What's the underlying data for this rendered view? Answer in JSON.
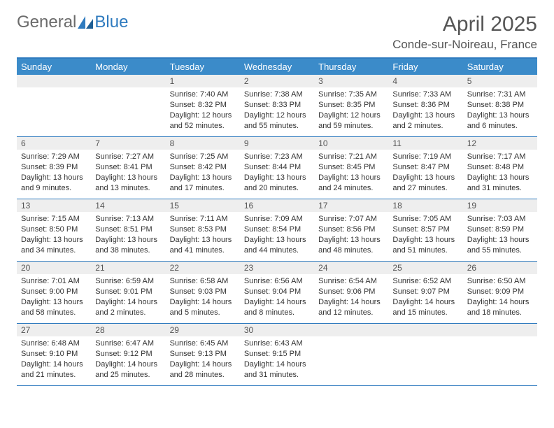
{
  "logo": {
    "part1": "General",
    "part2": "Blue"
  },
  "title": "April 2025",
  "location": "Conde-sur-Noireau, France",
  "colors": {
    "header_bg": "#3b8bc9",
    "border": "#2f7bbf",
    "daynum_bg": "#eeeeee",
    "text": "#333333",
    "title_text": "#555555",
    "logo_gray": "#6b6b6b",
    "logo_blue": "#2f7bbf",
    "background": "#ffffff"
  },
  "calendar": {
    "type": "table",
    "weekday_headers": [
      "Sunday",
      "Monday",
      "Tuesday",
      "Wednesday",
      "Thursday",
      "Friday",
      "Saturday"
    ],
    "header_fontsize": 13,
    "cell_fontsize": 11,
    "daynum_fontsize": 12,
    "rows": [
      [
        null,
        null,
        {
          "day": "1",
          "sunrise": "Sunrise: 7:40 AM",
          "sunset": "Sunset: 8:32 PM",
          "daylight": "Daylight: 12 hours and 52 minutes."
        },
        {
          "day": "2",
          "sunrise": "Sunrise: 7:38 AM",
          "sunset": "Sunset: 8:33 PM",
          "daylight": "Daylight: 12 hours and 55 minutes."
        },
        {
          "day": "3",
          "sunrise": "Sunrise: 7:35 AM",
          "sunset": "Sunset: 8:35 PM",
          "daylight": "Daylight: 12 hours and 59 minutes."
        },
        {
          "day": "4",
          "sunrise": "Sunrise: 7:33 AM",
          "sunset": "Sunset: 8:36 PM",
          "daylight": "Daylight: 13 hours and 2 minutes."
        },
        {
          "day": "5",
          "sunrise": "Sunrise: 7:31 AM",
          "sunset": "Sunset: 8:38 PM",
          "daylight": "Daylight: 13 hours and 6 minutes."
        }
      ],
      [
        {
          "day": "6",
          "sunrise": "Sunrise: 7:29 AM",
          "sunset": "Sunset: 8:39 PM",
          "daylight": "Daylight: 13 hours and 9 minutes."
        },
        {
          "day": "7",
          "sunrise": "Sunrise: 7:27 AM",
          "sunset": "Sunset: 8:41 PM",
          "daylight": "Daylight: 13 hours and 13 minutes."
        },
        {
          "day": "8",
          "sunrise": "Sunrise: 7:25 AM",
          "sunset": "Sunset: 8:42 PM",
          "daylight": "Daylight: 13 hours and 17 minutes."
        },
        {
          "day": "9",
          "sunrise": "Sunrise: 7:23 AM",
          "sunset": "Sunset: 8:44 PM",
          "daylight": "Daylight: 13 hours and 20 minutes."
        },
        {
          "day": "10",
          "sunrise": "Sunrise: 7:21 AM",
          "sunset": "Sunset: 8:45 PM",
          "daylight": "Daylight: 13 hours and 24 minutes."
        },
        {
          "day": "11",
          "sunrise": "Sunrise: 7:19 AM",
          "sunset": "Sunset: 8:47 PM",
          "daylight": "Daylight: 13 hours and 27 minutes."
        },
        {
          "day": "12",
          "sunrise": "Sunrise: 7:17 AM",
          "sunset": "Sunset: 8:48 PM",
          "daylight": "Daylight: 13 hours and 31 minutes."
        }
      ],
      [
        {
          "day": "13",
          "sunrise": "Sunrise: 7:15 AM",
          "sunset": "Sunset: 8:50 PM",
          "daylight": "Daylight: 13 hours and 34 minutes."
        },
        {
          "day": "14",
          "sunrise": "Sunrise: 7:13 AM",
          "sunset": "Sunset: 8:51 PM",
          "daylight": "Daylight: 13 hours and 38 minutes."
        },
        {
          "day": "15",
          "sunrise": "Sunrise: 7:11 AM",
          "sunset": "Sunset: 8:53 PM",
          "daylight": "Daylight: 13 hours and 41 minutes."
        },
        {
          "day": "16",
          "sunrise": "Sunrise: 7:09 AM",
          "sunset": "Sunset: 8:54 PM",
          "daylight": "Daylight: 13 hours and 44 minutes."
        },
        {
          "day": "17",
          "sunrise": "Sunrise: 7:07 AM",
          "sunset": "Sunset: 8:56 PM",
          "daylight": "Daylight: 13 hours and 48 minutes."
        },
        {
          "day": "18",
          "sunrise": "Sunrise: 7:05 AM",
          "sunset": "Sunset: 8:57 PM",
          "daylight": "Daylight: 13 hours and 51 minutes."
        },
        {
          "day": "19",
          "sunrise": "Sunrise: 7:03 AM",
          "sunset": "Sunset: 8:59 PM",
          "daylight": "Daylight: 13 hours and 55 minutes."
        }
      ],
      [
        {
          "day": "20",
          "sunrise": "Sunrise: 7:01 AM",
          "sunset": "Sunset: 9:00 PM",
          "daylight": "Daylight: 13 hours and 58 minutes."
        },
        {
          "day": "21",
          "sunrise": "Sunrise: 6:59 AM",
          "sunset": "Sunset: 9:01 PM",
          "daylight": "Daylight: 14 hours and 2 minutes."
        },
        {
          "day": "22",
          "sunrise": "Sunrise: 6:58 AM",
          "sunset": "Sunset: 9:03 PM",
          "daylight": "Daylight: 14 hours and 5 minutes."
        },
        {
          "day": "23",
          "sunrise": "Sunrise: 6:56 AM",
          "sunset": "Sunset: 9:04 PM",
          "daylight": "Daylight: 14 hours and 8 minutes."
        },
        {
          "day": "24",
          "sunrise": "Sunrise: 6:54 AM",
          "sunset": "Sunset: 9:06 PM",
          "daylight": "Daylight: 14 hours and 12 minutes."
        },
        {
          "day": "25",
          "sunrise": "Sunrise: 6:52 AM",
          "sunset": "Sunset: 9:07 PM",
          "daylight": "Daylight: 14 hours and 15 minutes."
        },
        {
          "day": "26",
          "sunrise": "Sunrise: 6:50 AM",
          "sunset": "Sunset: 9:09 PM",
          "daylight": "Daylight: 14 hours and 18 minutes."
        }
      ],
      [
        {
          "day": "27",
          "sunrise": "Sunrise: 6:48 AM",
          "sunset": "Sunset: 9:10 PM",
          "daylight": "Daylight: 14 hours and 21 minutes."
        },
        {
          "day": "28",
          "sunrise": "Sunrise: 6:47 AM",
          "sunset": "Sunset: 9:12 PM",
          "daylight": "Daylight: 14 hours and 25 minutes."
        },
        {
          "day": "29",
          "sunrise": "Sunrise: 6:45 AM",
          "sunset": "Sunset: 9:13 PM",
          "daylight": "Daylight: 14 hours and 28 minutes."
        },
        {
          "day": "30",
          "sunrise": "Sunrise: 6:43 AM",
          "sunset": "Sunset: 9:15 PM",
          "daylight": "Daylight: 14 hours and 31 minutes."
        },
        null,
        null,
        null
      ]
    ]
  }
}
